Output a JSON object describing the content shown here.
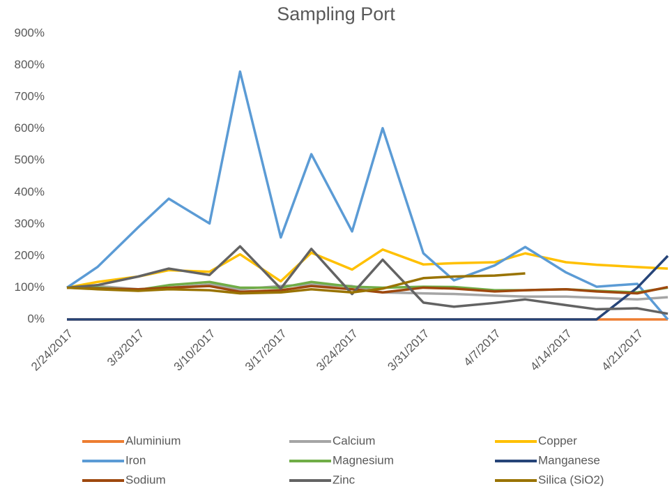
{
  "chart_data": {
    "type": "line",
    "title": "Sampling Port",
    "x": [
      "2/24/2017",
      "2/27/2017",
      "3/3/2017",
      "3/6/2017",
      "3/10/2017",
      "3/13/2017",
      "3/17/2017",
      "3/20/2017",
      "3/24/2017",
      "3/27/2017",
      "3/31/2017",
      "4/3/2017",
      "4/7/2017",
      "4/10/2017",
      "4/14/2017",
      "4/17/2017",
      "4/21/2017",
      "4/24/2017"
    ],
    "xlim": [
      "2/24/2017",
      "4/24/2017"
    ],
    "xticks": [
      "2/24/2017",
      "3/3/2017",
      "3/10/2017",
      "3/17/2017",
      "3/24/2017",
      "3/31/2017",
      "4/7/2017",
      "4/14/2017",
      "4/21/2017"
    ],
    "ylim": [
      0,
      900
    ],
    "yticks": [
      {
        "value": 0,
        "label": "0%"
      },
      {
        "value": 100,
        "label": "100%"
      },
      {
        "value": 200,
        "label": "200%"
      },
      {
        "value": 300,
        "label": "300%"
      },
      {
        "value": 400,
        "label": "400%"
      },
      {
        "value": 500,
        "label": "500%"
      },
      {
        "value": 600,
        "label": "600%"
      },
      {
        "value": 700,
        "label": "700%"
      },
      {
        "value": 800,
        "label": "800%"
      },
      {
        "value": 900,
        "label": "900%"
      }
    ],
    "legend": "bottom",
    "series": [
      {
        "name": "Aluminium",
        "color": "#ED7D31",
        "values": [
          0,
          0,
          0,
          0,
          0,
          0,
          0,
          0,
          0,
          0,
          0,
          0,
          0,
          0,
          0,
          0,
          0,
          0
        ]
      },
      {
        "name": "Calcium",
        "color": "#A5A5A5",
        "values": [
          100,
          105,
          95,
          100,
          110,
          95,
          105,
          110,
          105,
          85,
          82,
          80,
          75,
          72,
          72,
          68,
          63,
          70
        ]
      },
      {
        "name": "Copper",
        "color": "#FFC000",
        "values": [
          100,
          118,
          135,
          155,
          150,
          205,
          120,
          210,
          157,
          220,
          173,
          177,
          180,
          208,
          180,
          172,
          165,
          160
        ]
      },
      {
        "name": "Iron",
        "color": "#5B9BD5",
        "values": [
          100,
          165,
          290,
          380,
          302,
          780,
          258,
          520,
          277,
          602,
          208,
          123,
          170,
          228,
          148,
          103,
          112,
          0
        ]
      },
      {
        "name": "Magnesium",
        "color": "#70AD47",
        "values": [
          100,
          100,
          93,
          108,
          118,
          100,
          100,
          118,
          103,
          100,
          103,
          102,
          92,
          92,
          95,
          90,
          85,
          100
        ]
      },
      {
        "name": "Manganese",
        "color": "#264478",
        "values": [
          0,
          0,
          0,
          0,
          0,
          0,
          0,
          0,
          0,
          0,
          0,
          0,
          0,
          0,
          0,
          0,
          100,
          200
        ]
      },
      {
        "name": "Sodium",
        "color": "#9E480E",
        "values": [
          100,
          97,
          95,
          100,
          105,
          87,
          92,
          105,
          95,
          85,
          100,
          97,
          88,
          92,
          95,
          88,
          82,
          102
        ]
      },
      {
        "name": "Zinc",
        "color": "#636363",
        "values": [
          100,
          108,
          135,
          160,
          140,
          230,
          97,
          222,
          80,
          188,
          53,
          40,
          52,
          63,
          45,
          32,
          35,
          18
        ]
      },
      {
        "name": "Silica (SiO2)",
        "color": "#997300",
        "values": [
          100,
          95,
          90,
          95,
          92,
          82,
          85,
          95,
          85,
          97,
          130,
          135,
          138,
          145,
          null,
          null,
          null,
          null
        ]
      }
    ]
  }
}
